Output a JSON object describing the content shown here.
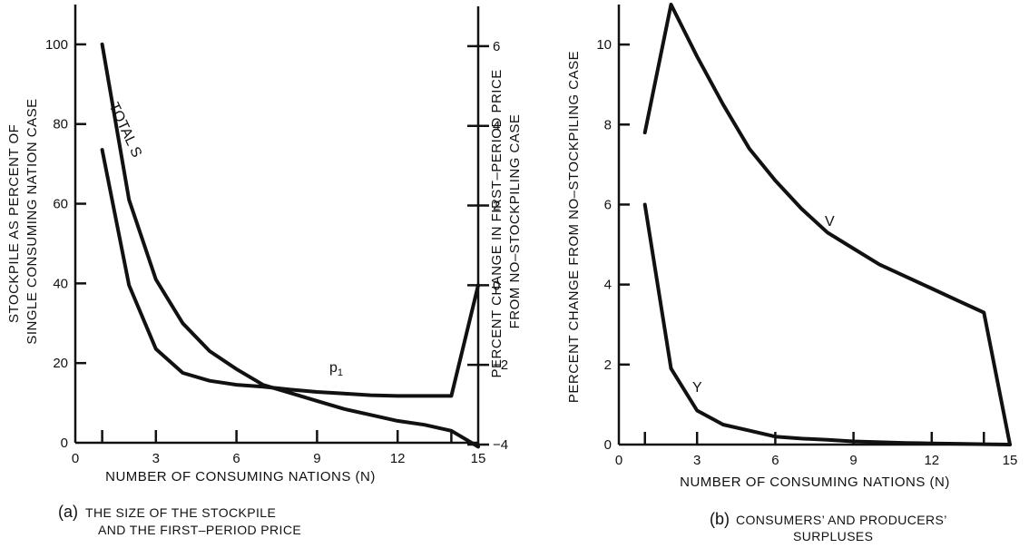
{
  "chart_data": [
    {
      "type": "line",
      "caption_letter": "(a)",
      "caption_lines": [
        "THE SIZE OF THE STOCKPILE",
        "AND THE FIRST–PERIOD PRICE"
      ],
      "xlabel": "NUMBER OF CONSUMING NATIONS (N)",
      "ylabel": [
        "STOCKPILE AS PERCENT OF",
        "SINGLE CONSUMING NATION CASE"
      ],
      "y2label": [
        "PERCENT CHANGE IN FIRST–PERIOD PRICE",
        "FROM NO–STOCKPILING CASE"
      ],
      "xlim": [
        0,
        15
      ],
      "ylim": [
        0,
        110
      ],
      "y2lim": [
        -4,
        7
      ],
      "x_ticks": [
        0,
        3,
        6,
        9,
        12,
        15
      ],
      "x_minor_ticks": [
        1,
        14
      ],
      "y_ticks": [
        0,
        20,
        40,
        60,
        80,
        100
      ],
      "y2_ticks": [
        -4,
        -2,
        0,
        2,
        4,
        6
      ],
      "y_tick_labels": [
        "0",
        "20",
        "40",
        "60",
        "80",
        "100"
      ],
      "y2_tick_labels": [
        "−4",
        "−2",
        "0",
        "2",
        "4",
        "6"
      ],
      "series": [
        {
          "name": "TOTAL S",
          "axis": "left",
          "x": [
            1,
            2,
            3,
            4,
            5,
            6,
            7,
            8,
            9,
            10,
            11,
            12,
            13,
            14,
            15
          ],
          "y": [
            100,
            61,
            41,
            30,
            23,
            18.5,
            14.5,
            12.5,
            10.5,
            8.5,
            7,
            5.5,
            4.5,
            3,
            -1
          ]
        },
        {
          "name": "p1",
          "axis": "right",
          "x": [
            1,
            2,
            3,
            4,
            5,
            6,
            7,
            8,
            9,
            10,
            11,
            12,
            13,
            14,
            15
          ],
          "y": [
            3.4,
            0,
            -1.6,
            -2.2,
            -2.4,
            -2.5,
            -2.55,
            -2.62,
            -2.68,
            -2.72,
            -2.76,
            -2.78,
            -2.78,
            -2.78,
            0
          ]
        }
      ]
    },
    {
      "type": "line",
      "caption_letter": "(b)",
      "caption_lines": [
        "CONSUMERS’ AND PRODUCERS’",
        "SURPLUSES"
      ],
      "xlabel": "NUMBER OF CONSUMING NATIONS (N)",
      "ylabel": [
        "PERCENT CHANGE FROM NO–STOCKPILING CASE"
      ],
      "xlim": [
        0,
        15
      ],
      "ylim": [
        0,
        11
      ],
      "x_ticks": [
        0,
        3,
        6,
        9,
        12,
        15
      ],
      "x_minor_ticks": [
        1,
        14
      ],
      "y_ticks": [
        0,
        2,
        4,
        6,
        8,
        10
      ],
      "y_tick_labels": [
        "0",
        "2",
        "4",
        "6",
        "8",
        "10"
      ],
      "series": [
        {
          "name": "V",
          "x": [
            1,
            2,
            3,
            4,
            5,
            6,
            7,
            8,
            9,
            10,
            11,
            12,
            13,
            14,
            15
          ],
          "y": [
            7.8,
            11.0,
            9.7,
            8.5,
            7.4,
            6.6,
            5.9,
            5.3,
            4.9,
            4.5,
            4.2,
            3.9,
            3.6,
            3.3,
            0
          ]
        },
        {
          "name": "Y",
          "x": [
            1,
            2,
            3,
            4,
            5,
            6,
            7,
            8,
            9,
            10,
            11,
            12,
            13,
            14,
            15
          ],
          "y": [
            6.0,
            1.9,
            0.85,
            0.5,
            0.35,
            0.2,
            0.15,
            0.12,
            0.08,
            0.06,
            0.04,
            0.03,
            0.02,
            0.01,
            0
          ]
        }
      ]
    }
  ]
}
